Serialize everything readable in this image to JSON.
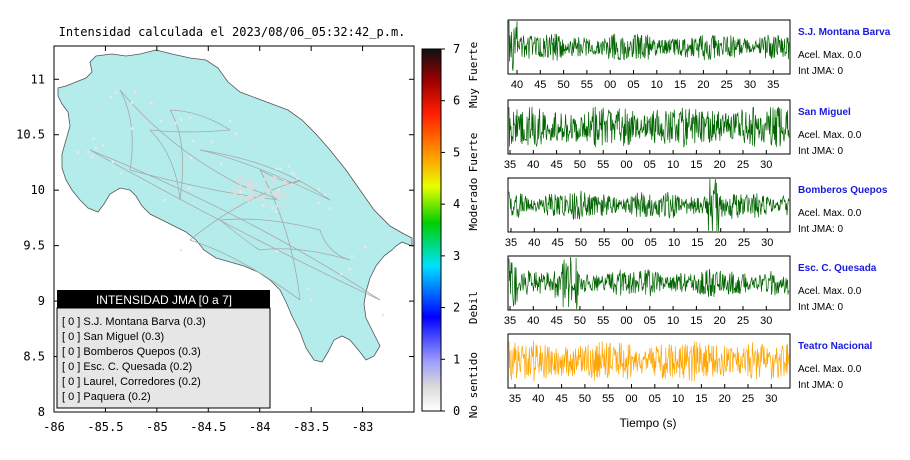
{
  "chart_data": [
    {
      "type": "map",
      "title": "Intensidad calculada el 2023/08/06_05:32:42_p.m.",
      "x_ticks": [
        "-86",
        "-85.5",
        "-85",
        "-84.5",
        "-84",
        "-83.5",
        "-83"
      ],
      "y_ticks": [
        "11",
        "10.5",
        "10",
        "9.5",
        "9",
        "8.5",
        "8"
      ],
      "xlim": [
        -86,
        -82.5
      ],
      "ylim": [
        8,
        11.3
      ],
      "land_color": "#b4ecec",
      "legend": {
        "title": "INTENSIDAD JMA [0 a 7]",
        "rows": [
          "[ 0 ]  S.J. Montana Barva (0.3)",
          "[ 0 ]  San Miguel (0.3)",
          "[ 0 ]  Bomberos Quepos (0.3)",
          "[ 0 ]  Esc. C. Quesada (0.2)",
          "[ 0 ]  Laurel, Corredores (0.2)",
          "[ 0 ]  Paquera (0.2)"
        ]
      },
      "colorbar": {
        "ticks": [
          "0",
          "1",
          "2",
          "3",
          "4",
          "5",
          "6",
          "7"
        ],
        "labels": [
          {
            "text": "No sentido",
            "value": 0.5
          },
          {
            "text": "Debil",
            "value": 2.0
          },
          {
            "text": "Moderado",
            "value": 4.0
          },
          {
            "text": "Fuerte",
            "value": 5.0
          },
          {
            "text": "Muy Fuerte",
            "value": 6.5
          }
        ]
      }
    },
    {
      "type": "line",
      "xlabel": "Tiempo (s)",
      "series": [
        {
          "name": "S.J. Montana Barva",
          "acel": "Acel. Max. 0.0",
          "int": "Int JMA: 0",
          "color": "#006400",
          "ticks": [
            "40",
            "45",
            "50",
            "55",
            "00",
            "05",
            "10",
            "15",
            "20",
            "25",
            "30",
            "35"
          ],
          "offset": 7
        },
        {
          "name": "San Miguel",
          "acel": "Acel. Max. 0.0",
          "int": "Int JMA: 0",
          "color": "#006400",
          "ticks": [
            "35",
            "40",
            "45",
            "50",
            "55",
            "00",
            "05",
            "10",
            "15",
            "20",
            "25",
            "30"
          ],
          "offset": 0
        },
        {
          "name": "Bomberos Quepos",
          "acel": "Acel. Max. 0.0",
          "int": "Int JMA: 0",
          "color": "#006400",
          "ticks": [
            "35",
            "40",
            "45",
            "50",
            "55",
            "00",
            "05",
            "10",
            "15",
            "20",
            "25",
            "30"
          ],
          "offset": 1
        },
        {
          "name": "Esc. C. Quesada",
          "acel": "Acel. Max. 0.0",
          "int": "Int JMA: 0",
          "color": "#006400",
          "ticks": [
            "35",
            "40",
            "45",
            "50",
            "55",
            "00",
            "05",
            "10",
            "15",
            "20",
            "25",
            "30"
          ],
          "offset": 0
        },
        {
          "name": "Teatro Nacional",
          "acel": "Acel. Max. 0.0",
          "int": "Int JMA: 0",
          "color": "#ffa500",
          "ticks": [
            "35",
            "40",
            "45",
            "50",
            "55",
            "00",
            "05",
            "10",
            "15",
            "20",
            "25",
            "30"
          ],
          "offset": 5
        }
      ]
    }
  ]
}
